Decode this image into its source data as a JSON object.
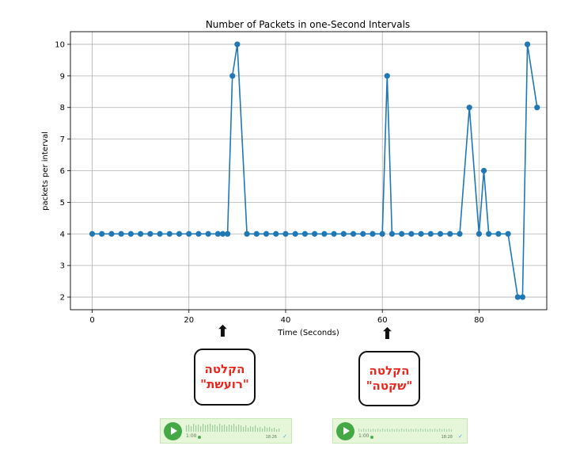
{
  "chart_data": {
    "type": "line",
    "title": "Number of Packets in one-Second Intervals",
    "xlabel": "Time (Seconds)",
    "ylabel": "packets per interval",
    "xlim": [
      -4.5,
      94
    ],
    "ylim": [
      1.6,
      10.4
    ],
    "xticks": [
      0,
      20,
      40,
      60,
      80
    ],
    "yticks": [
      2,
      3,
      4,
      5,
      6,
      7,
      8,
      9,
      10
    ],
    "grid": true,
    "color": "#1f77b4",
    "x": [
      0,
      2,
      4,
      6,
      8,
      10,
      12,
      14,
      16,
      18,
      20,
      22,
      24,
      26,
      27,
      28,
      29,
      30,
      32,
      34,
      36,
      38,
      40,
      42,
      44,
      46,
      48,
      50,
      52,
      54,
      56,
      58,
      60,
      61,
      62,
      64,
      66,
      68,
      70,
      72,
      74,
      76,
      78,
      80,
      81,
      82,
      84,
      86,
      88,
      89,
      90,
      92
    ],
    "y": [
      4,
      4,
      4,
      4,
      4,
      4,
      4,
      4,
      4,
      4,
      4,
      4,
      4,
      4,
      4,
      4,
      9,
      10,
      4,
      4,
      4,
      4,
      4,
      4,
      4,
      4,
      4,
      4,
      4,
      4,
      4,
      4,
      4,
      9,
      4,
      4,
      4,
      4,
      4,
      4,
      4,
      4,
      8,
      4,
      6,
      4,
      4,
      4,
      2,
      2,
      10,
      8
    ]
  },
  "annotations": [
    {
      "line1": "הקלטה",
      "line2": "\"רועשת\""
    },
    {
      "line1": "הקלטה",
      "line2": "\"שקטה\""
    }
  ],
  "voice_messages": [
    {
      "duration": "1:00",
      "time": "18:26",
      "status_icon": "double-check-icon"
    },
    {
      "duration": "1:00",
      "time": "18:28",
      "status_icon": "double-check-icon"
    }
  ],
  "arrow_glyph": "⬆"
}
